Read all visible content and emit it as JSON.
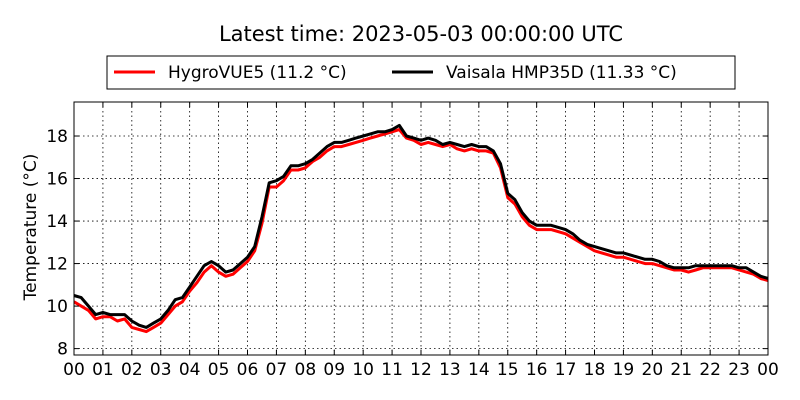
{
  "chart_data": {
    "type": "line",
    "title": "Latest time: 2023-05-03 00:00:00 UTC",
    "xlabel": "",
    "ylabel": "Temperature (°C)",
    "xlim": [
      0,
      24
    ],
    "ylim": [
      7.7,
      19.6
    ],
    "x_tick_labels": [
      "00",
      "01",
      "02",
      "03",
      "04",
      "05",
      "06",
      "07",
      "08",
      "09",
      "10",
      "11",
      "12",
      "13",
      "14",
      "15",
      "16",
      "17",
      "18",
      "19",
      "20",
      "21",
      "22",
      "23",
      "00"
    ],
    "y_ticks": [
      8,
      10,
      12,
      14,
      16,
      18
    ],
    "grid": true,
    "legend_position": "top",
    "series": [
      {
        "name": "HygroVUE5 (11.2 °C)",
        "color": "#ff0000",
        "x": [
          0,
          0.25,
          0.5,
          0.75,
          1,
          1.25,
          1.5,
          1.75,
          2,
          2.25,
          2.5,
          2.75,
          3,
          3.25,
          3.5,
          3.75,
          4,
          4.25,
          4.5,
          4.75,
          5,
          5.25,
          5.5,
          5.75,
          6,
          6.25,
          6.5,
          6.75,
          7,
          7.25,
          7.5,
          7.75,
          8,
          8.25,
          8.5,
          8.75,
          9,
          9.25,
          9.5,
          9.75,
          10,
          10.25,
          10.5,
          10.75,
          11,
          11.25,
          11.5,
          11.75,
          12,
          12.25,
          12.5,
          12.75,
          13,
          13.25,
          13.5,
          13.75,
          14,
          14.25,
          14.5,
          14.75,
          15,
          15.25,
          15.5,
          15.75,
          16,
          16.25,
          16.5,
          16.75,
          17,
          17.25,
          17.5,
          17.75,
          18,
          18.25,
          18.5,
          18.75,
          19,
          19.25,
          19.5,
          19.75,
          20,
          20.25,
          20.5,
          20.75,
          21,
          21.25,
          21.5,
          21.75,
          22,
          22.25,
          22.5,
          22.75,
          23,
          23.25,
          23.5,
          23.75,
          24
        ],
        "values": [
          10.2,
          10.0,
          9.8,
          9.4,
          9.5,
          9.5,
          9.3,
          9.4,
          9.0,
          8.9,
          8.8,
          9.0,
          9.2,
          9.6,
          10.0,
          10.2,
          10.7,
          11.1,
          11.6,
          11.9,
          11.6,
          11.4,
          11.5,
          11.8,
          12.1,
          12.6,
          13.9,
          15.6,
          15.6,
          15.9,
          16.4,
          16.4,
          16.5,
          16.8,
          17.0,
          17.3,
          17.5,
          17.5,
          17.6,
          17.7,
          17.8,
          17.9,
          18.0,
          18.1,
          18.2,
          18.3,
          17.9,
          17.8,
          17.6,
          17.7,
          17.6,
          17.5,
          17.6,
          17.4,
          17.3,
          17.4,
          17.3,
          17.3,
          17.2,
          16.5,
          15.1,
          14.8,
          14.2,
          13.8,
          13.6,
          13.6,
          13.6,
          13.5,
          13.4,
          13.2,
          13.0,
          12.8,
          12.6,
          12.5,
          12.4,
          12.3,
          12.3,
          12.2,
          12.1,
          12.0,
          12.0,
          11.9,
          11.8,
          11.7,
          11.7,
          11.6,
          11.7,
          11.8,
          11.8,
          11.8,
          11.8,
          11.8,
          11.7,
          11.6,
          11.5,
          11.3,
          11.2
        ]
      },
      {
        "name": "Vaisala HMP35D (11.33 °C)",
        "color": "#000000",
        "x": [
          0,
          0.25,
          0.5,
          0.75,
          1,
          1.25,
          1.5,
          1.75,
          2,
          2.25,
          2.5,
          2.75,
          3,
          3.25,
          3.5,
          3.75,
          4,
          4.25,
          4.5,
          4.75,
          5,
          5.25,
          5.5,
          5.75,
          6,
          6.25,
          6.5,
          6.75,
          7,
          7.25,
          7.5,
          7.75,
          8,
          8.25,
          8.5,
          8.75,
          9,
          9.25,
          9.5,
          9.75,
          10,
          10.25,
          10.5,
          10.75,
          11,
          11.25,
          11.5,
          11.75,
          12,
          12.25,
          12.5,
          12.75,
          13,
          13.25,
          13.5,
          13.75,
          14,
          14.25,
          14.5,
          14.75,
          15,
          15.25,
          15.5,
          15.75,
          16,
          16.25,
          16.5,
          16.75,
          17,
          17.25,
          17.5,
          17.75,
          18,
          18.25,
          18.5,
          18.75,
          19,
          19.25,
          19.5,
          19.75,
          20,
          20.25,
          20.5,
          20.75,
          21,
          21.25,
          21.5,
          21.75,
          22,
          22.25,
          22.5,
          22.75,
          23,
          23.25,
          23.5,
          23.75,
          24
        ],
        "values": [
          10.5,
          10.4,
          10.0,
          9.6,
          9.7,
          9.6,
          9.6,
          9.6,
          9.3,
          9.1,
          9.0,
          9.2,
          9.4,
          9.8,
          10.3,
          10.4,
          10.9,
          11.4,
          11.9,
          12.1,
          11.9,
          11.6,
          11.7,
          12.0,
          12.3,
          12.8,
          14.2,
          15.8,
          15.9,
          16.1,
          16.6,
          16.6,
          16.7,
          16.9,
          17.2,
          17.5,
          17.7,
          17.7,
          17.8,
          17.9,
          18.0,
          18.1,
          18.2,
          18.2,
          18.3,
          18.5,
          18.0,
          17.9,
          17.8,
          17.9,
          17.8,
          17.6,
          17.7,
          17.6,
          17.5,
          17.6,
          17.5,
          17.5,
          17.3,
          16.7,
          15.3,
          15.0,
          14.4,
          14.0,
          13.8,
          13.8,
          13.8,
          13.7,
          13.6,
          13.4,
          13.1,
          12.9,
          12.8,
          12.7,
          12.6,
          12.5,
          12.5,
          12.4,
          12.3,
          12.2,
          12.2,
          12.1,
          11.9,
          11.8,
          11.8,
          11.8,
          11.9,
          11.9,
          11.9,
          11.9,
          11.9,
          11.9,
          11.8,
          11.8,
          11.6,
          11.4,
          11.3
        ]
      }
    ]
  }
}
